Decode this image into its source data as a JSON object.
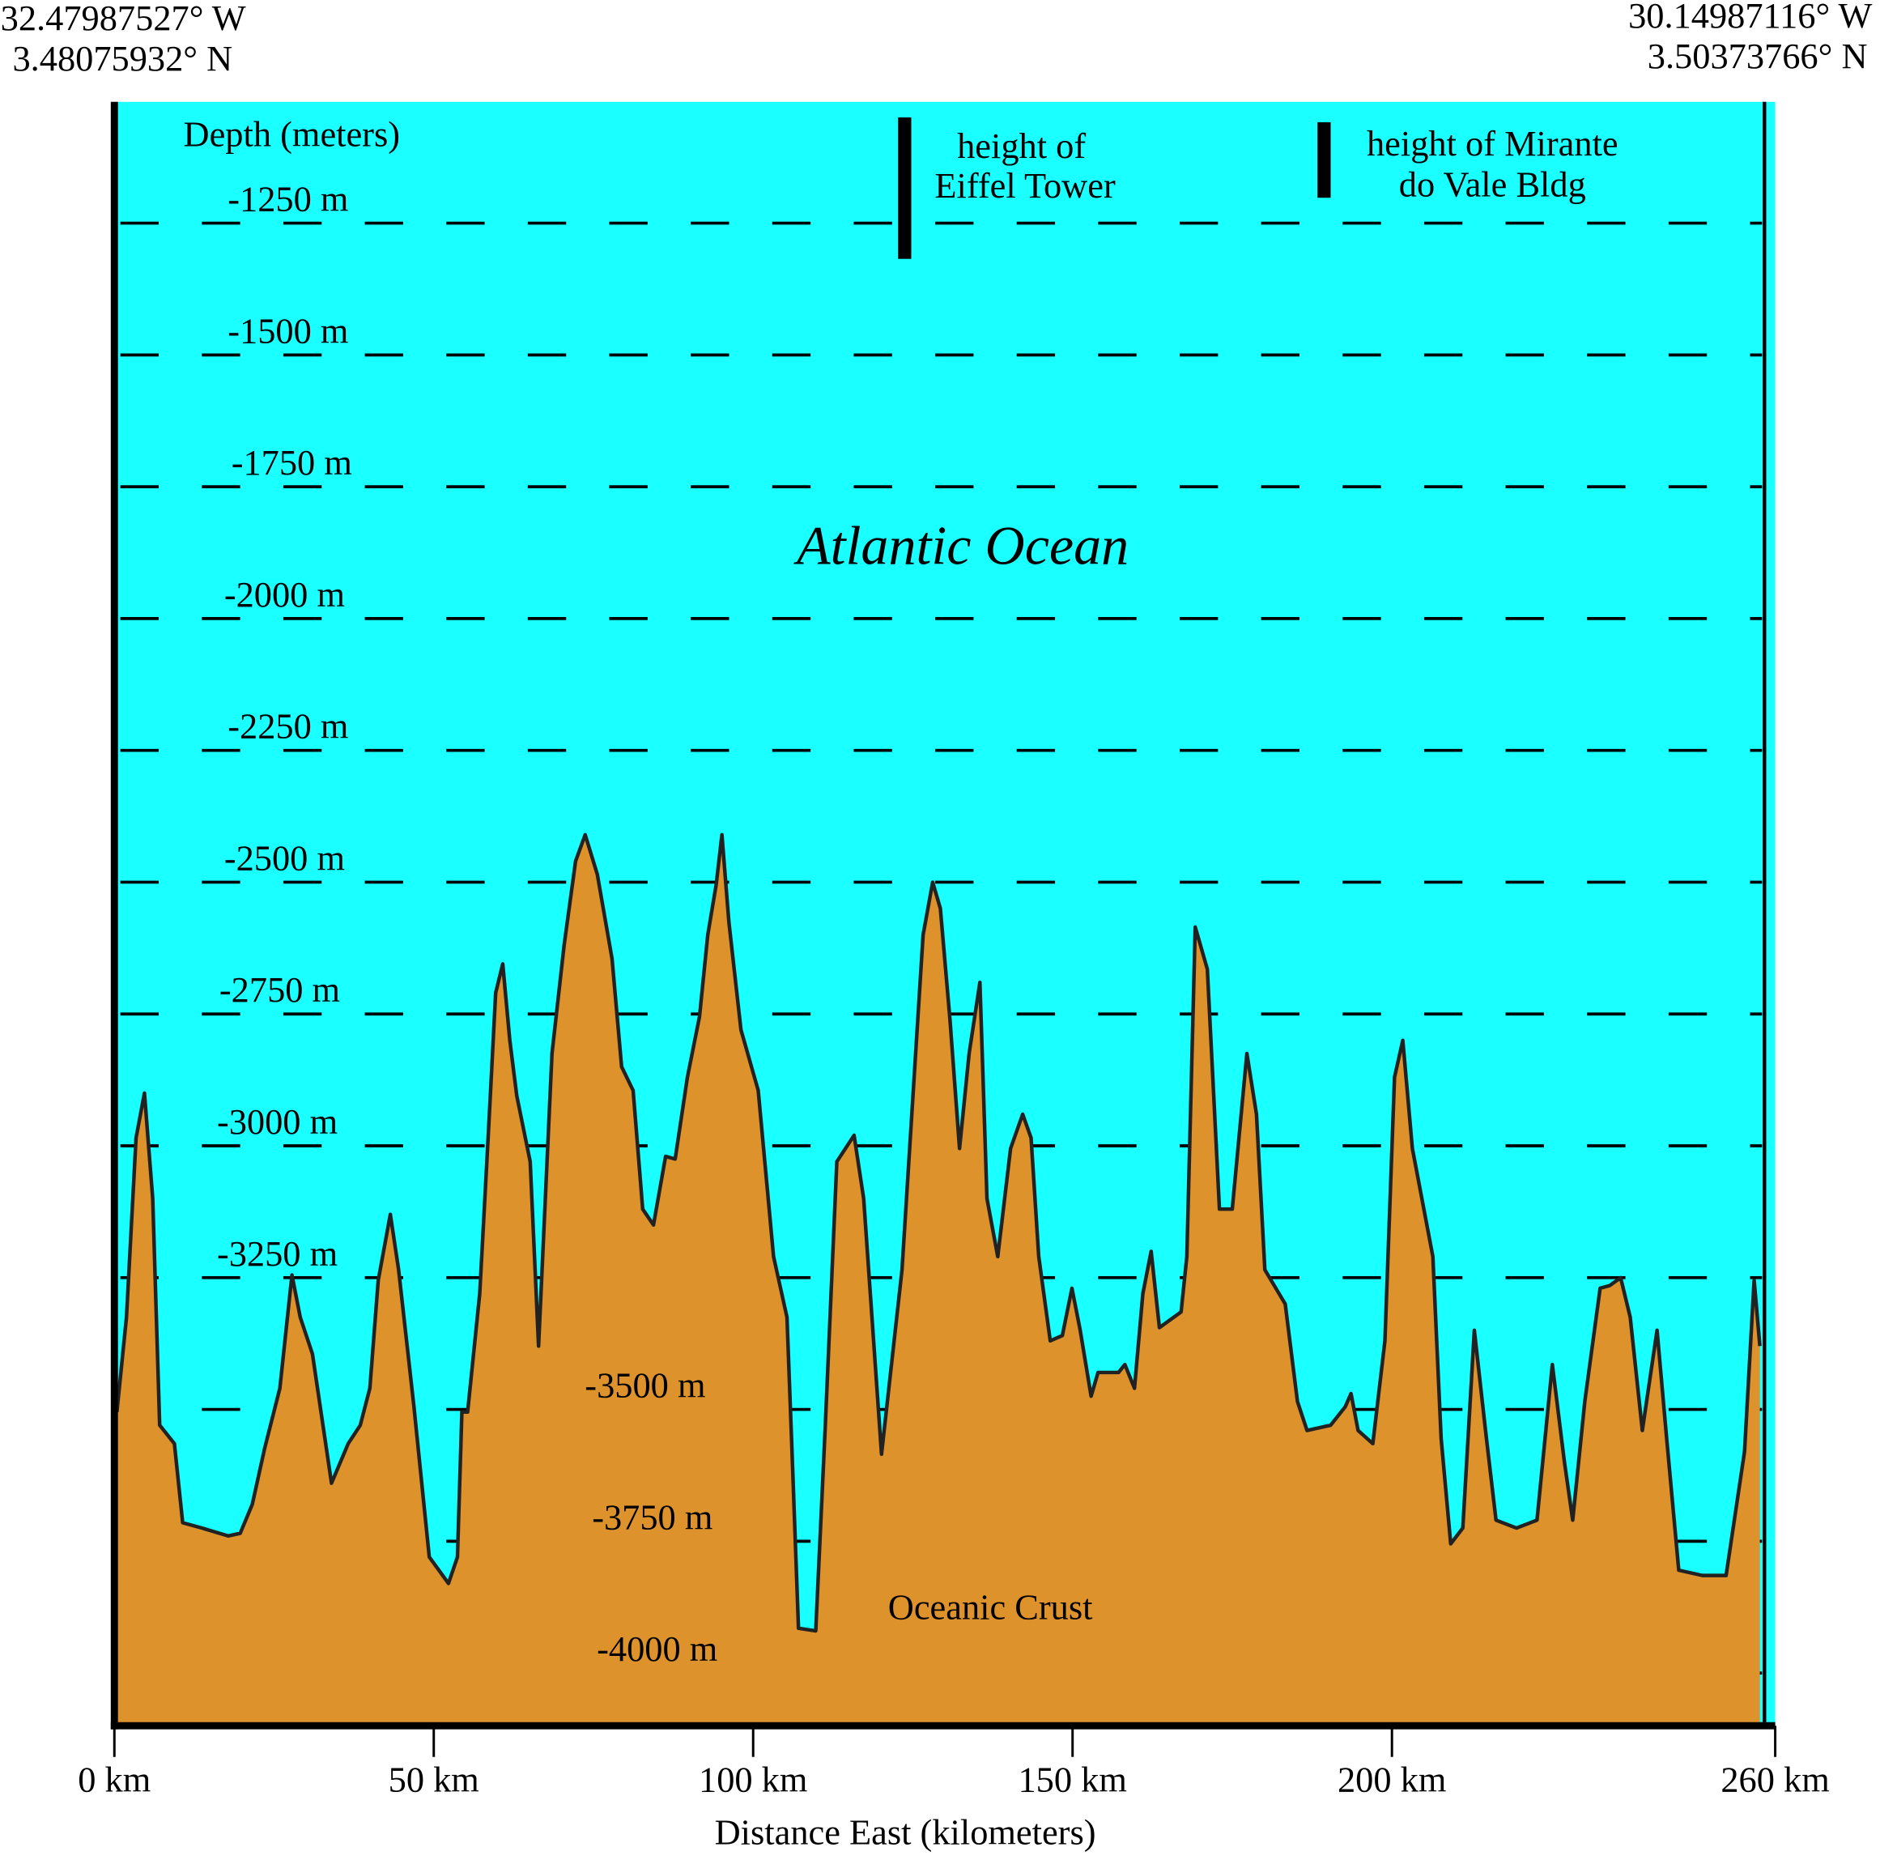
{
  "chart_data": {
    "type": "area",
    "corner_labels": {
      "left": [
        "32.47987527° W",
        "3.48075932° N"
      ],
      "right": [
        "30.14987116° W",
        "3.50373766° N"
      ]
    },
    "ylabel": "Depth (meters)",
    "xlabel": "Distance East (kilometers)",
    "annotations": {
      "eiffel": [
        "height of",
        "Eiffel Tower"
      ],
      "mirante": [
        "height of Mirante",
        "do Vale Bldg"
      ],
      "ocean": "Atlantic Ocean",
      "crust": "Oceanic Crust"
    },
    "ocean_color": "#1affff",
    "color": "#dd922c",
    "grid": true,
    "xlim": [
      0,
      260
    ],
    "ylim": [
      -4100,
      -1020
    ],
    "xticks": [
      {
        "value": 0,
        "label": "0 km"
      },
      {
        "value": 50,
        "label": "50 km"
      },
      {
        "value": 100,
        "label": "100 km"
      },
      {
        "value": 150,
        "label": "150 km"
      },
      {
        "value": 200,
        "label": "200 km"
      },
      {
        "value": 260,
        "label": "260 km"
      }
    ],
    "yticks": [
      {
        "value": -1250,
        "label": "-1250 m"
      },
      {
        "value": -1500,
        "label": "-1500 m"
      },
      {
        "value": -1750,
        "label": "-1750 m"
      },
      {
        "value": -2000,
        "label": "-2000 m"
      },
      {
        "value": -2250,
        "label": "-2250 m"
      },
      {
        "value": -2500,
        "label": "-2500 m"
      },
      {
        "value": -2750,
        "label": "-2750 m"
      },
      {
        "value": -3000,
        "label": "-3000 m"
      },
      {
        "value": -3250,
        "label": "-3250 m"
      },
      {
        "value": -3500,
        "label": "-3500 m"
      },
      {
        "value": -3750,
        "label": "-3750 m"
      },
      {
        "value": -4000,
        "label": "-4000 m"
      }
    ],
    "x": [
      0.4,
      1.9,
      3.4,
      4.7,
      6.0,
      7.1,
      9.4,
      10.7,
      13.7,
      17.8,
      19.7,
      21.6,
      23.5,
      25.9,
      27.8,
      29.1,
      31.0,
      34.0,
      36.6,
      38.5,
      40.0,
      41.3,
      43.2,
      44.5,
      46.9,
      49.3,
      52.3,
      53.7,
      54.4,
      55.3,
      57.2,
      58.5,
      59.7,
      60.8,
      61.9,
      63.0,
      65.1,
      66.4,
      68.5,
      70.4,
      72.2,
      73.7,
      75.6,
      77.9,
      79.4,
      81.2,
      82.7,
      84.4,
      86.3,
      87.8,
      89.7,
      91.6,
      92.9,
      94.2,
      95.1,
      96.2,
      98.1,
      100.8,
      103.2,
      105.3,
      106.0,
      107.1,
      109.8,
      111.3,
      113.1,
      115.8,
      117.3,
      120.1,
      123.3,
      126.6,
      128.1,
      129.3,
      130.8,
      132.3,
      133.8,
      135.5,
      136.6,
      138.3,
      140.3,
      142.2,
      143.5,
      144.7,
      146.5,
      148.4,
      149.9,
      151.2,
      152.9,
      154.0,
      157.2,
      158.2,
      159.7,
      161.0,
      162.3,
      163.6,
      167.0,
      167.9,
      169.2,
      171.1,
      173.0,
      175.0,
      177.3,
      178.8,
      180.1,
      183.3,
      185.2,
      186.7,
      190.4,
      192.7,
      193.6,
      194.7,
      197.0,
      198.9,
      200.4,
      201.7,
      203.2,
      206.4,
      207.7,
      209.2,
      211.1,
      212.9,
      214.8,
      216.3,
      219.5,
      222.7,
      225.1,
      227.0,
      228.3,
      230.2,
      232.6,
      234.1,
      235.8,
      237.3,
      239.2,
      241.5,
      243.0,
      244.9,
      248.6,
      252.3,
      255.2,
      256.7,
      257.6
    ],
    "values": [
      -3505,
      -3325,
      -2985,
      -2900,
      -3100,
      -3530,
      -3565,
      -3715,
      -3725,
      -3740,
      -3735,
      -3680,
      -3575,
      -3460,
      -3245,
      -3325,
      -3395,
      -3640,
      -3565,
      -3530,
      -3460,
      -3255,
      -3130,
      -3235,
      -3495,
      -3780,
      -3830,
      -3780,
      -3505,
      -3505,
      -3280,
      -2985,
      -2710,
      -2655,
      -2800,
      -2905,
      -3030,
      -3380,
      -2825,
      -2620,
      -2460,
      -2410,
      -2485,
      -2645,
      -2850,
      -2895,
      -3120,
      -3150,
      -3020,
      -3025,
      -2870,
      -2755,
      -2600,
      -2505,
      -2410,
      -2575,
      -2780,
      -2895,
      -3210,
      -3325,
      -3555,
      -3915,
      -3920,
      -3530,
      -3030,
      -2980,
      -3100,
      -3585,
      -3235,
      -2600,
      -2500,
      -2550,
      -2760,
      -3005,
      -2825,
      -2690,
      -3100,
      -3210,
      -3005,
      -2940,
      -2985,
      -3210,
      -3370,
      -3360,
      -3270,
      -3350,
      -3475,
      -3430,
      -3430,
      -3415,
      -3460,
      -3280,
      -3200,
      -3345,
      -3315,
      -3210,
      -2585,
      -2665,
      -3120,
      -3120,
      -2825,
      -2940,
      -3235,
      -3300,
      -3485,
      -3540,
      -3530,
      -3495,
      -3470,
      -3540,
      -3565,
      -3370,
      -2870,
      -2800,
      -3005,
      -3210,
      -3555,
      -3755,
      -3725,
      -3350,
      -3555,
      -3710,
      -3725,
      -3710,
      -3415,
      -3600,
      -3710,
      -3485,
      -3270,
      -3265,
      -3250,
      -3325,
      -3540,
      -3350,
      -3555,
      -3805,
      -3815,
      -3815,
      -3580,
      -3255,
      -3380
    ]
  }
}
